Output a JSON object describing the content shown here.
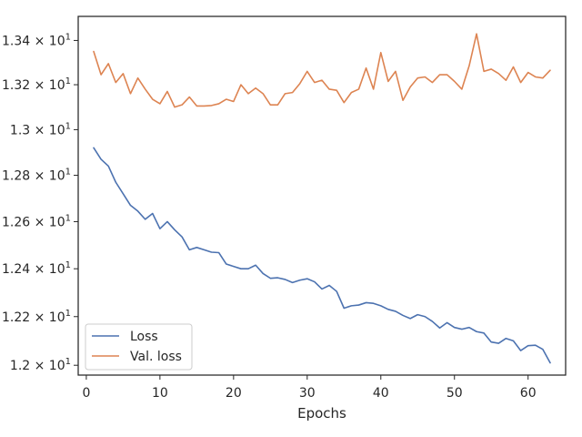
{
  "chart_data": {
    "type": "line",
    "title": "",
    "xlabel": "Epochs",
    "ylabel": "",
    "yscale": "log",
    "grid": false,
    "legend_position": "lower-left",
    "xlim": [
      -1.1,
      65.1
    ],
    "ylim": [
      11.96,
      13.51
    ],
    "x_ticks": [
      0,
      10,
      20,
      30,
      40,
      50,
      60
    ],
    "x_tick_labels": [
      "0",
      "10",
      "20",
      "30",
      "40",
      "50",
      "60"
    ],
    "y_ticks": [
      12.0,
      12.2,
      12.4,
      12.6,
      12.8,
      13.0,
      13.2,
      13.4
    ],
    "y_tick_labels": [
      {
        "base": "1.2 × 10",
        "exp": "1"
      },
      {
        "base": "1.22 × 10",
        "exp": "1"
      },
      {
        "base": "1.24 × 10",
        "exp": "1"
      },
      {
        "base": "1.26 × 10",
        "exp": "1"
      },
      {
        "base": "1.28 × 10",
        "exp": "1"
      },
      {
        "base": "1.3 × 10",
        "exp": "1"
      },
      {
        "base": "1.32 × 10",
        "exp": "1"
      },
      {
        "base": "1.34 × 10",
        "exp": "1"
      }
    ],
    "x": [
      1,
      2,
      3,
      4,
      5,
      6,
      7,
      8,
      9,
      10,
      11,
      12,
      13,
      14,
      15,
      16,
      17,
      18,
      19,
      20,
      21,
      22,
      23,
      24,
      25,
      26,
      27,
      28,
      29,
      30,
      31,
      32,
      33,
      34,
      35,
      36,
      37,
      38,
      39,
      40,
      41,
      42,
      43,
      44,
      45,
      46,
      47,
      48,
      49,
      50,
      51,
      52,
      53,
      54,
      55,
      56,
      57,
      58,
      59,
      60,
      61,
      62,
      63
    ],
    "series": [
      {
        "name": "Loss",
        "color": "#4c72b0",
        "values": [
          12.92,
          12.87,
          12.84,
          12.77,
          12.72,
          12.67,
          12.645,
          12.61,
          12.635,
          12.57,
          12.6,
          12.565,
          12.535,
          12.48,
          12.49,
          12.48,
          12.47,
          12.468,
          12.42,
          12.41,
          12.4,
          12.4,
          12.415,
          12.38,
          12.36,
          12.362,
          12.355,
          12.342,
          12.352,
          12.358,
          12.345,
          12.315,
          12.33,
          12.305,
          12.235,
          12.245,
          12.248,
          12.258,
          12.255,
          12.245,
          12.23,
          12.222,
          12.205,
          12.192,
          12.208,
          12.2,
          12.18,
          12.153,
          12.175,
          12.155,
          12.148,
          12.155,
          12.138,
          12.132,
          12.095,
          12.09,
          12.11,
          12.1,
          12.06,
          12.08,
          12.082,
          12.065,
          12.01
        ]
      },
      {
        "name": "Val. loss",
        "color": "#dd8452",
        "values": [
          13.35,
          13.245,
          13.295,
          13.21,
          13.25,
          13.16,
          13.23,
          13.18,
          13.135,
          13.115,
          13.17,
          13.1,
          13.11,
          13.145,
          13.105,
          13.105,
          13.107,
          13.115,
          13.135,
          13.125,
          13.2,
          13.16,
          13.185,
          13.16,
          13.11,
          13.11,
          13.16,
          13.165,
          13.205,
          13.26,
          13.21,
          13.22,
          13.18,
          13.175,
          13.12,
          13.165,
          13.18,
          13.275,
          13.18,
          13.345,
          13.215,
          13.26,
          13.13,
          13.19,
          13.23,
          13.235,
          13.21,
          13.245,
          13.245,
          13.215,
          13.18,
          13.285,
          13.43,
          13.26,
          13.27,
          13.25,
          13.22,
          13.28,
          13.21,
          13.255,
          13.235,
          13.23,
          13.265
        ]
      }
    ]
  }
}
